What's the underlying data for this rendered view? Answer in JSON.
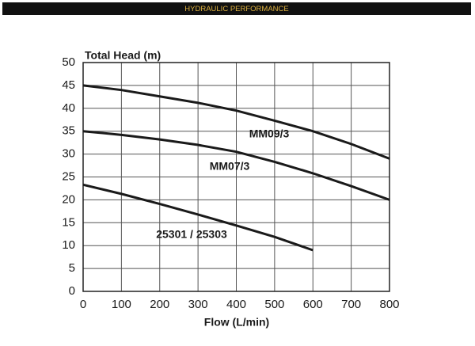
{
  "header": {
    "title": "HYDRAULIC PERFORMANCE"
  },
  "chart_data": {
    "type": "line",
    "y_label": "Total Head (m)",
    "x_label": "Flow (L/min)",
    "xlim": [
      0,
      800
    ],
    "xticks": [
      0,
      100,
      200,
      300,
      400,
      500,
      600,
      700,
      800
    ],
    "ylim": [
      0,
      50
    ],
    "yticks": [
      0,
      5,
      10,
      15,
      20,
      25,
      30,
      35,
      40,
      45,
      50
    ],
    "grid": true,
    "series": [
      {
        "name": "MM09/3",
        "color": "#1a1a1a",
        "x": [
          0,
          100,
          200,
          300,
          400,
          500,
          600,
          700,
          800
        ],
        "values": [
          45,
          44,
          42.6,
          41.2,
          39.5,
          37.3,
          35,
          32.2,
          29
        ]
      },
      {
        "name": "MM07/3",
        "color": "#1a1a1a",
        "x": [
          0,
          100,
          200,
          300,
          400,
          500,
          600,
          700,
          800
        ],
        "values": [
          35,
          34.2,
          33.2,
          32,
          30.5,
          28.3,
          25.8,
          23,
          20
        ]
      },
      {
        "name": "25301 / 25303",
        "color": "#1a1a1a",
        "x": [
          0,
          100,
          200,
          300,
          400,
          500,
          600
        ],
        "values": [
          23.3,
          21.3,
          19.1,
          16.8,
          14.4,
          11.9,
          9
        ]
      }
    ]
  }
}
